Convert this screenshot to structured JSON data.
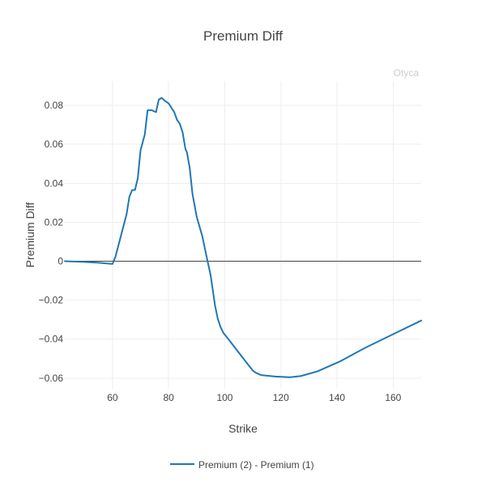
{
  "chart_data": {
    "type": "line",
    "title": "Premium Diff",
    "xlabel": "Strike",
    "ylabel": "Premium Diff",
    "watermark": "Otyca",
    "xlim": [
      43,
      170
    ],
    "ylim": [
      -0.0655,
      0.0925
    ],
    "x_ticks": [
      60,
      80,
      100,
      120,
      140,
      160
    ],
    "x_tick_labels": [
      "60",
      "80",
      "100",
      "120",
      "140",
      "160"
    ],
    "y_ticks": [
      -0.06,
      -0.04,
      -0.02,
      0,
      0.02,
      0.04,
      0.06,
      0.08
    ],
    "y_tick_labels": [
      "−0.06",
      "−0.04",
      "−0.02",
      "0",
      "0.02",
      "0.04",
      "0.06",
      "0.08"
    ],
    "grid": true,
    "legend_position": "bottom",
    "series": [
      {
        "name": "Premium (2) - Premium (1)",
        "color": "#1f77b4",
        "x": [
          43,
          50,
          55,
          60,
          61,
          65,
          66,
          67,
          68,
          69,
          70,
          71.5,
          72.5,
          74,
          75.5,
          76.5,
          77.5,
          78.5,
          80,
          82,
          83,
          84,
          85,
          86,
          86.5,
          87.5,
          88.5,
          90,
          92,
          93.5,
          95,
          96.5,
          97.5,
          98.5,
          99.5,
          101,
          103,
          106,
          108,
          110,
          111,
          113,
          115,
          118,
          123,
          127,
          133,
          141,
          150,
          160,
          170
        ],
        "y": [
          0,
          -0.0004,
          -0.0008,
          -0.0014,
          0.002,
          0.024,
          0.033,
          0.0365,
          0.0365,
          0.0425,
          0.057,
          0.065,
          0.0775,
          0.0775,
          0.0765,
          0.083,
          0.0838,
          0.0825,
          0.081,
          0.0765,
          0.0725,
          0.0705,
          0.066,
          0.0575,
          0.056,
          0.048,
          0.0345,
          0.0228,
          0.0128,
          0.0025,
          -0.0075,
          -0.0225,
          -0.0295,
          -0.0338,
          -0.0368,
          -0.0395,
          -0.0432,
          -0.0488,
          -0.0525,
          -0.0562,
          -0.0572,
          -0.0585,
          -0.0588,
          -0.0592,
          -0.0596,
          -0.059,
          -0.0566,
          -0.0515,
          -0.0445,
          -0.0375,
          -0.0305
        ]
      }
    ]
  }
}
